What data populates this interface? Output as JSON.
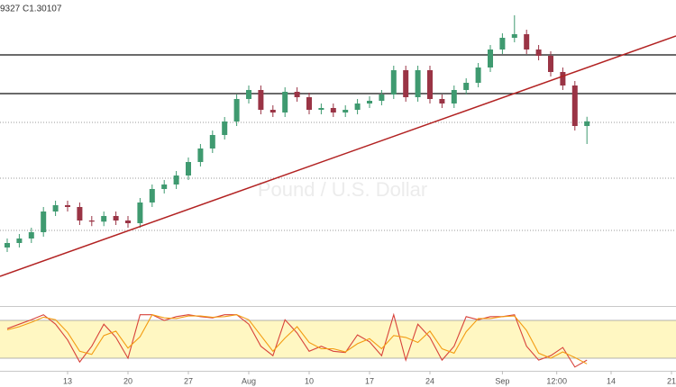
{
  "header_text": "9327 C1.30107",
  "chart_data": [
    {
      "type": "candlestick",
      "subtitle": "Pound / U.S. Dollar",
      "x": [
        -5,
        -4,
        -3,
        -2,
        -1,
        0,
        1,
        2,
        3,
        4,
        5,
        6,
        7,
        8,
        9,
        10,
        11,
        12,
        13,
        14,
        15,
        16,
        17,
        18,
        19,
        20,
        21,
        22,
        23,
        24,
        25,
        26,
        27,
        28,
        29,
        30,
        31,
        32,
        33,
        34,
        35,
        36,
        37,
        38,
        39,
        40,
        41,
        42,
        43
      ],
      "open": [
        1.245,
        1.247,
        1.249,
        1.2518,
        1.261,
        1.2638,
        1.263,
        1.257,
        1.2565,
        1.259,
        1.257,
        1.2558,
        1.265,
        1.271,
        1.273,
        1.277,
        1.283,
        1.289,
        1.295,
        1.301,
        1.311,
        1.315,
        1.3062,
        1.305,
        1.3142,
        1.3118,
        1.3062,
        1.307,
        1.305,
        1.3062,
        1.309,
        1.3102,
        1.313,
        1.3238,
        1.3118,
        1.3238,
        1.311,
        1.309,
        1.315,
        1.3182,
        1.325,
        1.333,
        1.3382,
        1.3398,
        1.333,
        1.3302,
        1.323,
        1.317,
        1.299
      ],
      "high": [
        1.249,
        1.251,
        1.2538,
        1.263,
        1.2658,
        1.2658,
        1.265,
        1.259,
        1.261,
        1.261,
        1.259,
        1.267,
        1.273,
        1.275,
        1.279,
        1.285,
        1.291,
        1.297,
        1.303,
        1.313,
        1.317,
        1.317,
        1.3082,
        1.3162,
        1.3162,
        1.3138,
        1.309,
        1.309,
        1.3082,
        1.311,
        1.3122,
        1.315,
        1.3258,
        1.3258,
        1.3258,
        1.3258,
        1.313,
        1.317,
        1.3202,
        1.327,
        1.335,
        1.3402,
        1.3482,
        1.3418,
        1.335,
        1.3322,
        1.325,
        1.319,
        1.3031
      ],
      "low": [
        1.243,
        1.245,
        1.247,
        1.2498,
        1.259,
        1.261,
        1.255,
        1.2545,
        1.2545,
        1.255,
        1.2538,
        1.2538,
        1.263,
        1.269,
        1.271,
        1.275,
        1.281,
        1.287,
        1.293,
        1.299,
        1.309,
        1.3042,
        1.303,
        1.303,
        1.3098,
        1.3042,
        1.3042,
        1.303,
        1.303,
        1.3042,
        1.307,
        1.3082,
        1.311,
        1.3098,
        1.3098,
        1.309,
        1.307,
        1.307,
        1.313,
        1.3162,
        1.323,
        1.331,
        1.3362,
        1.331,
        1.3282,
        1.321,
        1.315,
        1.297,
        1.291
      ],
      "close": [
        1.247,
        1.249,
        1.2518,
        1.261,
        1.2638,
        1.263,
        1.257,
        1.2565,
        1.259,
        1.257,
        1.2558,
        1.265,
        1.271,
        1.273,
        1.277,
        1.283,
        1.289,
        1.295,
        1.301,
        1.311,
        1.315,
        1.3062,
        1.305,
        1.3142,
        1.3118,
        1.3062,
        1.307,
        1.305,
        1.3062,
        1.309,
        1.3102,
        1.313,
        1.3238,
        1.3118,
        1.3238,
        1.311,
        1.309,
        1.315,
        1.3182,
        1.325,
        1.333,
        1.3382,
        1.3398,
        1.333,
        1.3302,
        1.323,
        1.317,
        1.299,
        1.30107
      ],
      "up_color": "#3f9a70",
      "down_color": "#9a3445",
      "xlim": [
        -5.597,
        50.373
      ],
      "ylim": [
        1.219,
        1.355
      ],
      "levels": [
        {
          "value": 1.3306,
          "style": "solid"
        },
        {
          "value": 1.3134,
          "style": "solid"
        },
        {
          "value": 1.3006,
          "style": "dotted"
        },
        {
          "value": 1.2758,
          "style": "dotted"
        },
        {
          "value": 1.2526,
          "style": "dotted"
        }
      ],
      "trendline": {
        "x": [
          -5.597,
          50.373
        ],
        "y": [
          1.2322,
          1.339
        ],
        "color": "#b22222"
      }
    },
    {
      "type": "line",
      "x": [
        -5,
        -4,
        -3,
        -2,
        -1,
        0,
        1,
        2,
        3,
        4,
        5,
        6,
        7,
        8,
        9,
        10,
        11,
        12,
        13,
        14,
        15,
        16,
        17,
        18,
        19,
        20,
        21,
        22,
        23,
        24,
        25,
        26,
        27,
        28,
        29,
        30,
        31,
        32,
        33,
        34,
        35,
        36,
        37,
        38,
        39,
        40,
        41,
        42,
        43
      ],
      "series": [
        {
          "color": "#d8433b",
          "values": [
            67,
            74,
            81,
            89,
            74,
            49,
            14,
            39,
            74,
            53,
            20,
            89,
            89,
            80,
            86,
            89,
            86,
            84,
            89,
            89,
            74,
            39,
            24,
            81,
            60,
            31,
            39,
            31,
            29,
            57,
            46,
            24,
            89,
            17,
            74,
            53,
            17,
            39,
            86,
            81,
            86,
            86,
            89,
            39,
            17,
            24,
            37,
            6,
            17
          ]
        },
        {
          "color": "#f39c12",
          "values": [
            65,
            70,
            77,
            85,
            81,
            61,
            31,
            26,
            56,
            63,
            36,
            54,
            89,
            84,
            83,
            87,
            87,
            85,
            86,
            89,
            81,
            56,
            31,
            52,
            70,
            45,
            35,
            35,
            30,
            43,
            51,
            35,
            56,
            53,
            45,
            63,
            35,
            28,
            62,
            83,
            83,
            86,
            87,
            64,
            28,
            20,
            30,
            21,
            11
          ]
        }
      ],
      "bands": [
        20,
        80
      ],
      "band_color": "#fff7c2",
      "xlim": [
        -5.597,
        50.373
      ],
      "ylim": [
        0,
        100
      ],
      "xticks": [
        {
          "value": 0,
          "label": "13"
        },
        {
          "value": 5,
          "label": "20"
        },
        {
          "value": 10,
          "label": "27"
        },
        {
          "value": 15,
          "label": "Aug"
        },
        {
          "value": 20,
          "label": "10"
        },
        {
          "value": 25,
          "label": "17"
        },
        {
          "value": 30,
          "label": "24"
        },
        {
          "value": 36,
          "label": "Sep"
        },
        {
          "value": 40.5,
          "label": "12:00"
        },
        {
          "value": 45,
          "label": "14"
        },
        {
          "value": 50,
          "label": "21"
        }
      ]
    }
  ]
}
